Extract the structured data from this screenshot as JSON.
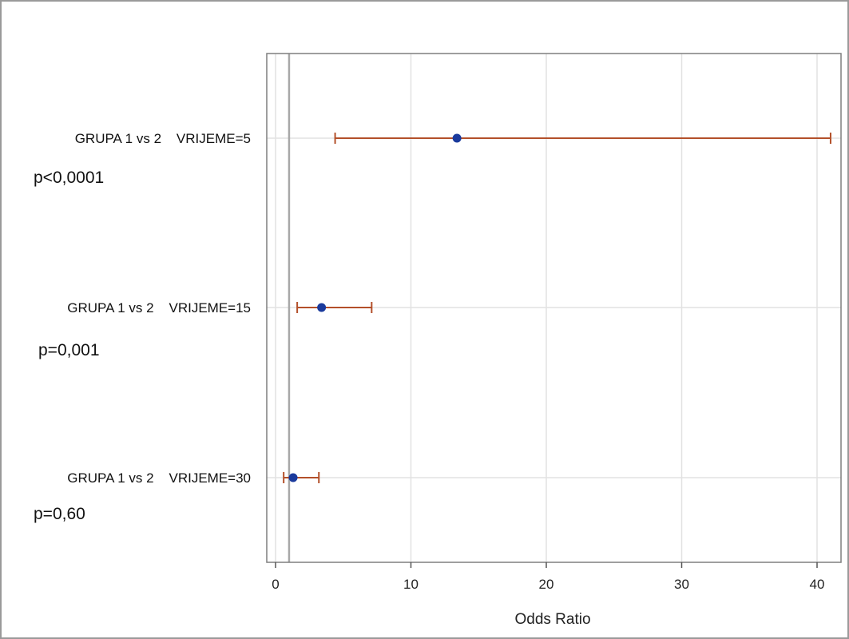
{
  "chart_data": {
    "type": "scatter",
    "subtype": "forest-plot",
    "title": "",
    "xlabel": "Odds Ratio",
    "ylabel": "",
    "xlim": [
      -0.6,
      41.6
    ],
    "xticks": [
      0,
      10,
      20,
      30,
      40
    ],
    "reference_line": 1,
    "grid": true,
    "rows": [
      {
        "label": "GRUPA 1 vs 2    VRIJEME=5",
        "p_value": "p<0,0001",
        "estimate": 13.4,
        "lower": 4.4,
        "upper": 41.0
      },
      {
        "label": "GRUPA 1 vs 2    VRIJEME=15",
        "p_value": "p=0,001",
        "estimate": 3.4,
        "lower": 1.6,
        "upper": 7.1
      },
      {
        "label": "GRUPA 1 vs 2    VRIJEME=30",
        "p_value": "p=0,60",
        "estimate": 1.3,
        "lower": 0.6,
        "upper": 3.2
      }
    ],
    "colors": {
      "ci": "#b3502a",
      "point": "#1a3a9c",
      "reference": "#a8a8a8",
      "grid": "#e2e2e2"
    }
  }
}
